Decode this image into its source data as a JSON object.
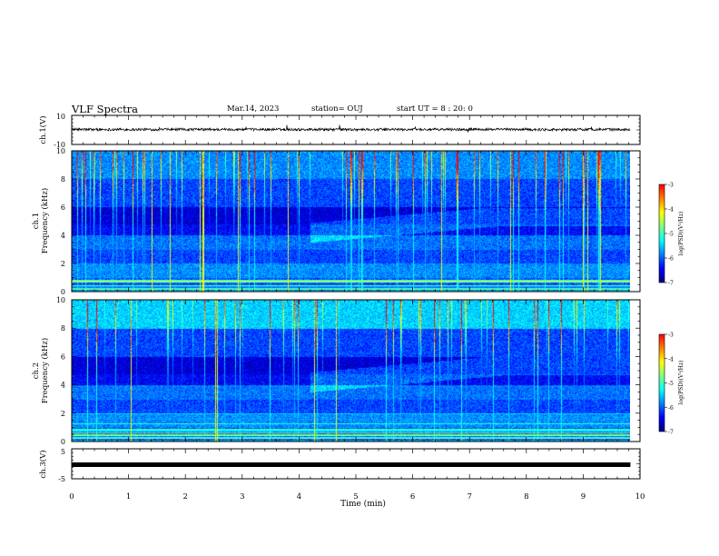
{
  "header": {
    "title": "VLF Spectra",
    "date": "Mar.14, 2023",
    "station": "station= OUJ",
    "start_ut": "start UT = 8 : 20: 0"
  },
  "chart_data": [
    {
      "type": "line",
      "name": "waveform-ch1",
      "ylabel": "ch.1(V)",
      "ylim": [
        -10,
        10
      ],
      "yticks": [
        "10",
        "-10"
      ],
      "color": "#000000"
    },
    {
      "type": "heatmap",
      "name": "spectrogram-ch1",
      "ylabel_1": "ch.1",
      "ylabel_2": "Frequency (kHz)",
      "ylim": [
        0,
        10
      ],
      "yticks": [
        "0",
        "2",
        "4",
        "6",
        "8",
        "10"
      ],
      "colorbar": {
        "label": "log(PSD)(V²/Hz)",
        "range": [
          -7,
          -3
        ],
        "ticks": [
          "-3",
          "-4",
          "-5",
          "-6",
          "-7"
        ]
      }
    },
    {
      "type": "heatmap",
      "name": "spectrogram-ch2",
      "ylabel_1": "ch.2",
      "ylabel_2": "Frequency (kHz)",
      "ylim": [
        0,
        10
      ],
      "yticks": [
        "0",
        "2",
        "4",
        "6",
        "8",
        "10"
      ],
      "colorbar": {
        "label": "log(PSD)(V²/Hz)",
        "range": [
          -7,
          -3
        ],
        "ticks": [
          "-3",
          "-4",
          "-5",
          "-6",
          "-7"
        ]
      }
    },
    {
      "type": "line",
      "name": "waveform-ch3",
      "ylabel": "ch.3(V)",
      "ylim": [
        -5,
        5
      ],
      "yticks": [
        "5",
        "-5"
      ],
      "color": "#000000"
    }
  ],
  "xaxis": {
    "label": "Time (min)",
    "range": [
      0,
      10
    ],
    "ticks": [
      "0",
      "1",
      "2",
      "3",
      "4",
      "5",
      "6",
      "7",
      "8",
      "9",
      "10"
    ],
    "data_end": 9.83
  },
  "colormap": [
    "#00007f",
    "#0000ff",
    "#007fff",
    "#00ffff",
    "#7fff7f",
    "#ffff00",
    "#ff7f00",
    "#ff0000",
    "#ffffff"
  ]
}
